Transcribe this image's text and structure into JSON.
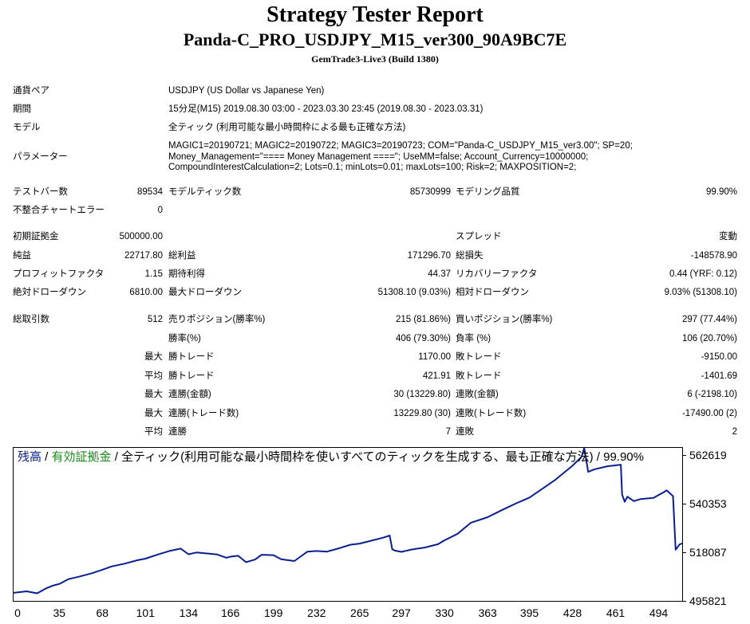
{
  "header": {
    "title": "Strategy Tester Report",
    "subtitle": "Panda-C_PRO_USDJPY_M15_ver300_90A9BC7E",
    "server": "GemTrade3-Live3 (Build 1380)"
  },
  "info": {
    "symbol_label": "通貨ペア",
    "symbol_value": "USDJPY (US Dollar vs Japanese Yen)",
    "period_label": "期間",
    "period_value": "15分足(M15) 2019.08.30 03:00 - 2023.03.30 23:45 (2019.08.30 - 2023.03.31)",
    "model_label": "モデル",
    "model_value": "全ティック (利用可能な最小時間枠による最も正確な方法)",
    "params_label": "パラメーター",
    "params_lines": [
      "MAGIC1=20190721; MAGIC2=20190722; MAGIC3=20190723; COM=\"Panda-C_USDJPY_M15_ver3.00\"; SP=20;",
      "Money_Management=\"==== Money Management ====\"; UseMM=false; Account_Currency=10000000;",
      "CompoundInterestCalculation=2; Lots=0.1; minLots=0.01; maxLots=100; Risk=2; MAXPOSITION=2;"
    ]
  },
  "stats": {
    "bars_label": "テストバー数",
    "bars_value": "89534",
    "ticks_label": "モデルティック数",
    "ticks_value": "85730999",
    "quality_label": "モデリング品質",
    "quality_value": "99.90%",
    "mismatch_label": "不整合チャートエラー",
    "mismatch_value": "0",
    "deposit_label": "初期証拠金",
    "deposit_value": "500000.00",
    "spread_label": "スプレッド",
    "spread_value": "変動",
    "net_label": "純益",
    "net_value": "22717.80",
    "gross_profit_label": "総利益",
    "gross_profit_value": "171296.70",
    "gross_loss_label": "総損失",
    "gross_loss_value": "-148578.90",
    "pf_label": "プロフィットファクタ",
    "pf_value": "1.15",
    "expected_label": "期待利得",
    "expected_value": "44.37",
    "recovery_label": "リカバリーファクタ",
    "recovery_value": "0.44 (YRF: 0.12)",
    "abs_dd_label": "絶対ドローダウン",
    "abs_dd_value": "6810.00",
    "max_dd_label": "最大ドローダウン",
    "max_dd_value": "51308.10 (9.03%)",
    "rel_dd_label": "相対ドローダウン",
    "rel_dd_value": "9.03% (51308.10)",
    "trades_label": "総取引数",
    "trades_value": "512",
    "short_label": "売りポジション(勝率%)",
    "short_value": "215 (81.86%)",
    "long_label": "買いポジション(勝率%)",
    "long_value": "297 (77.44%)",
    "win_label": "勝率(%)",
    "win_value": "406 (79.30%)",
    "loss_label": "負率 (%)",
    "loss_value": "106 (20.70%)",
    "max_word": "最大",
    "avg_word": "平均",
    "largest_win_label": "勝トレード",
    "largest_win_value": "1170.00",
    "largest_loss_label": "敗トレード",
    "largest_loss_value": "-9150.00",
    "avg_win_label": "勝トレード",
    "avg_win_value": "421.91",
    "avg_loss_label": "敗トレード",
    "avg_loss_value": "-1401.69",
    "max_consec_win_amt_label": "連勝(金額)",
    "max_consec_win_amt_value": "30 (13229.80)",
    "max_consec_loss_amt_label": "連敗(金額)",
    "max_consec_loss_amt_value": "6 (-2198.10)",
    "max_consec_win_trades_label": "連勝(トレード数)",
    "max_consec_win_trades_value": "13229.80 (30)",
    "max_consec_loss_trades_label": "連敗(トレード数)",
    "max_consec_loss_trades_value": "-17490.00 (2)",
    "avg_consec_win_label": "連勝",
    "avg_consec_win_value": "7",
    "avg_consec_loss_label": "連敗",
    "avg_consec_loss_value": "2"
  },
  "chart_legend": {
    "balance": "残高",
    "sep1": " / ",
    "equity": "有効証拠金",
    "rest": " / 全ティック(利用可能な最小時間枠を使いすべてのティックを生成する、最も正確な方法) / 99.90%"
  },
  "colors": {
    "balance_line": "#0a1f8f",
    "equity_text": "#1a8a1a"
  },
  "chart_data": {
    "type": "line",
    "title": "",
    "xlabel": "",
    "ylabel": "",
    "x_ticks": [
      "0",
      "35",
      "68",
      "101",
      "134",
      "166",
      "199",
      "232",
      "265",
      "297",
      "330",
      "363",
      "395",
      "428",
      "461",
      "494"
    ],
    "y_ticks": [
      "562619",
      "540353",
      "518087",
      "495821"
    ],
    "xlim": [
      0,
      512
    ],
    "ylim": [
      495821,
      566000
    ],
    "series": [
      {
        "values_x": [
          0,
          10,
          18,
          25,
          30,
          35,
          42,
          50,
          60,
          68,
          75,
          85,
          95,
          101,
          110,
          120,
          128,
          134,
          140,
          150,
          156,
          163,
          166,
          172,
          178,
          185,
          190,
          199,
          205,
          215,
          225,
          232,
          240,
          250,
          258,
          265,
          275,
          283,
          288,
          290,
          292,
          297,
          305,
          315,
          325,
          330,
          340,
          350,
          363,
          375,
          385,
          395,
          405,
          415,
          428,
          435,
          437,
          440,
          445,
          455,
          465,
          466,
          468,
          470,
          475,
          480,
          490,
          498,
          500,
          505,
          507,
          510,
          512
        ],
        "values_y": [
          499500,
          500200,
          499300,
          501600,
          502800,
          503600,
          505800,
          506900,
          508500,
          510100,
          511600,
          512900,
          514500,
          515200,
          517000,
          518800,
          519800,
          517200,
          518000,
          517500,
          517100,
          515600,
          516100,
          516500,
          513600,
          514800,
          517000,
          516800,
          514900,
          514100,
          518400,
          518700,
          518400,
          520100,
          521600,
          522100,
          523600,
          524800,
          525800,
          519500,
          518900,
          518300,
          519400,
          520300,
          521800,
          523600,
          526600,
          531600,
          534200,
          537800,
          540600,
          543200,
          547300,
          551400,
          557800,
          561900,
          566000,
          555000,
          556200,
          557600,
          558300,
          544600,
          541300,
          543600,
          541600,
          542500,
          543100,
          545700,
          546500,
          543900,
          519300,
          521700,
          522200
        ]
      }
    ]
  }
}
